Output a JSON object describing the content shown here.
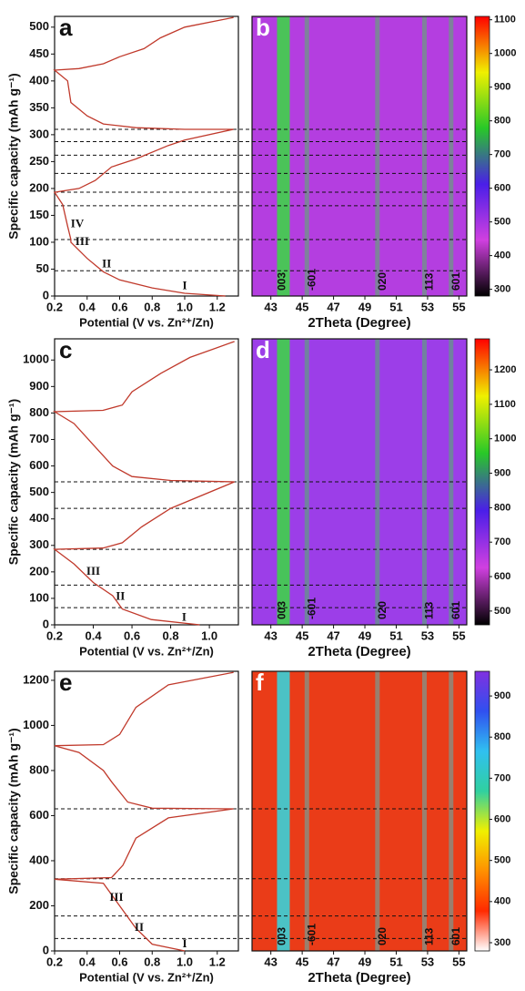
{
  "chart_data": [
    {
      "type": "line",
      "panel_label": "a",
      "ylabel": "Specific capacity (mAh g⁻¹)",
      "xlabel": "Potential (V vs. Zn²⁺/Zn)",
      "xlim": [
        0.2,
        1.33
      ],
      "xticks": [
        0.2,
        0.4,
        0.6,
        0.8,
        {
          "value": 1,
          "label": "1.0"
        },
        1.2
      ],
      "ylim": [
        0,
        520
      ],
      "yticks": [
        0,
        50,
        100,
        150,
        200,
        250,
        300,
        350,
        400,
        450,
        500
      ],
      "series": [
        {
          "color": "#c0392b",
          "x": [
            1.25,
            1.0,
            0.8,
            0.6,
            0.5,
            0.4,
            0.3,
            0.3,
            0.28,
            0.25,
            0.2,
            0.35,
            0.45,
            0.55,
            0.7,
            0.9,
            1.0,
            1.3,
            1.0,
            0.7,
            0.5,
            0.4,
            0.3,
            0.28,
            0.2,
            0.35,
            0.5,
            0.6,
            0.75,
            0.85,
            1.0,
            1.3
          ],
          "values": [
            0,
            5,
            15,
            30,
            45,
            70,
            100,
            105,
            130,
            170,
            193,
            200,
            215,
            240,
            255,
            280,
            290,
            310,
            310,
            313,
            320,
            335,
            360,
            400,
            420,
            423,
            432,
            445,
            460,
            480,
            500,
            518
          ]
        }
      ],
      "annotations": [
        {
          "text": "I",
          "x": 1.0,
          "y": 18
        },
        {
          "text": "II",
          "x": 0.52,
          "y": 58
        },
        {
          "text": "III",
          "x": 0.37,
          "y": 100
        },
        {
          "text": "IV",
          "x": 0.34,
          "y": 133
        }
      ],
      "reference_lines": [
        47,
        105,
        168,
        193,
        228,
        262,
        287,
        310
      ]
    },
    {
      "type": "heatmap",
      "panel_label": "b",
      "xlabel": "2Theta (Degree)",
      "xlim": [
        41.8,
        55.5
      ],
      "xticks": [
        43,
        45,
        47,
        49,
        51,
        53,
        55
      ],
      "background": "#b43ee0",
      "band_color": "#3fd24a",
      "peaks": [
        {
          "label": "003",
          "x": 43.8
        },
        {
          "label": "-601",
          "x": 45.3
        },
        {
          "label": "020",
          "x": 49.8
        },
        {
          "label": "113",
          "x": 52.8
        },
        {
          "label": "601",
          "x": 54.5
        }
      ],
      "clim": [
        280,
        1110
      ],
      "cticks": [
        300,
        400,
        500,
        600,
        700,
        800,
        900,
        1000,
        1100
      ],
      "colormap": [
        "#000000",
        "#d040e0",
        "#4a1ee8",
        "#28c828",
        "#f0f000",
        "#ff0000"
      ]
    },
    {
      "type": "line",
      "panel_label": "c",
      "ylabel": "Specific capacity (mAh g⁻¹)",
      "xlabel": "Potential (V vs. Zn²⁺/Zn)",
      "xlim": [
        0.2,
        1.15
      ],
      "xticks": [
        0.2,
        0.4,
        0.6,
        0.8,
        {
          "value": 1,
          "label": "1.0"
        }
      ],
      "ylim": [
        0,
        1080
      ],
      "yticks": [
        0,
        100,
        200,
        300,
        400,
        500,
        600,
        700,
        800,
        900,
        1000
      ],
      "series": [
        {
          "color": "#c0392b",
          "x": [
            0.95,
            0.7,
            0.55,
            0.5,
            0.4,
            0.3,
            0.2,
            0.45,
            0.55,
            0.65,
            0.8,
            1.13,
            0.8,
            0.6,
            0.5,
            0.4,
            0.3,
            0.2,
            0.45,
            0.55,
            0.6,
            0.75,
            0.9,
            1.13
          ],
          "values": [
            0,
            20,
            60,
            110,
            160,
            230,
            285,
            290,
            310,
            370,
            440,
            540,
            545,
            560,
            600,
            680,
            760,
            805,
            810,
            830,
            880,
            950,
            1010,
            1070
          ]
        }
      ],
      "annotations": [
        {
          "text": "I",
          "x": 0.87,
          "y": 25
        },
        {
          "text": "II",
          "x": 0.54,
          "y": 105
        },
        {
          "text": "III",
          "x": 0.4,
          "y": 200
        }
      ],
      "reference_lines": [
        65,
        150,
        285,
        440,
        540
      ]
    },
    {
      "type": "heatmap",
      "panel_label": "d",
      "xlabel": "2Theta (Degree)",
      "xlim": [
        41.8,
        55.5
      ],
      "xticks": [
        43,
        45,
        47,
        49,
        51,
        53,
        55
      ],
      "background": "#9c3ee8",
      "band_color": "#3fd24a",
      "peaks": [
        {
          "label": "003",
          "x": 43.8
        },
        {
          "label": "-601",
          "x": 45.3
        },
        {
          "label": "020",
          "x": 49.8
        },
        {
          "label": "113",
          "x": 52.8
        },
        {
          "label": "601",
          "x": 54.5
        }
      ],
      "clim": [
        460,
        1290
      ],
      "cticks": [
        500,
        600,
        700,
        800,
        900,
        1000,
        1100,
        1200
      ],
      "colormap": [
        "#000000",
        "#d040e0",
        "#4a1ee8",
        "#28c828",
        "#f0f000",
        "#ff0000"
      ]
    },
    {
      "type": "line",
      "panel_label": "e",
      "ylabel": "Specific capacity (mAh g⁻¹)",
      "xlabel": "Potential (V vs. Zn²⁺/Zn)",
      "xlim": [
        0.2,
        1.33
      ],
      "xticks": [
        0.2,
        0.4,
        0.6,
        0.8,
        {
          "value": 1,
          "label": "1.0"
        },
        1.2
      ],
      "ylim": [
        0,
        1240
      ],
      "yticks": [
        0,
        200,
        400,
        600,
        800,
        1000,
        1200
      ],
      "series": [
        {
          "color": "#c0392b",
          "x": [
            1.0,
            0.8,
            0.7,
            0.6,
            0.5,
            0.2,
            0.55,
            0.62,
            0.7,
            0.9,
            1.3,
            0.8,
            0.65,
            0.55,
            0.5,
            0.35,
            0.2,
            0.5,
            0.6,
            0.7,
            0.9,
            1.3
          ],
          "values": [
            0,
            30,
            100,
            200,
            300,
            318,
            325,
            380,
            500,
            590,
            630,
            633,
            660,
            750,
            800,
            880,
            910,
            915,
            960,
            1080,
            1180,
            1235
          ]
        }
      ],
      "annotations": [
        {
          "text": "I",
          "x": 1.0,
          "y": 28
        },
        {
          "text": "II",
          "x": 0.72,
          "y": 100
        },
        {
          "text": "III",
          "x": 0.58,
          "y": 235
        }
      ],
      "reference_lines": [
        55,
        155,
        320,
        630
      ]
    },
    {
      "type": "heatmap",
      "panel_label": "f",
      "xlabel": "2Theta (Degree)",
      "xlim": [
        41.8,
        55.5
      ],
      "xticks": [
        43,
        45,
        47,
        49,
        51,
        53,
        55
      ],
      "background": "#ea3c18",
      "band_color": "#3ad0d8",
      "peaks": [
        {
          "label": "003",
          "x": 43.8
        },
        {
          "label": "-601",
          "x": 45.3
        },
        {
          "label": "020",
          "x": 49.8
        },
        {
          "label": "113",
          "x": 52.8
        },
        {
          "label": "601",
          "x": 54.5
        }
      ],
      "clim": [
        280,
        960
      ],
      "cticks": [
        300,
        400,
        500,
        600,
        700,
        800,
        900
      ],
      "colormap": [
        "#ffffff",
        "#ff2a00",
        "#ff9000",
        "#f0f000",
        "#30d0a0",
        "#30c0f0",
        "#3050f0",
        "#8030e0"
      ]
    }
  ]
}
